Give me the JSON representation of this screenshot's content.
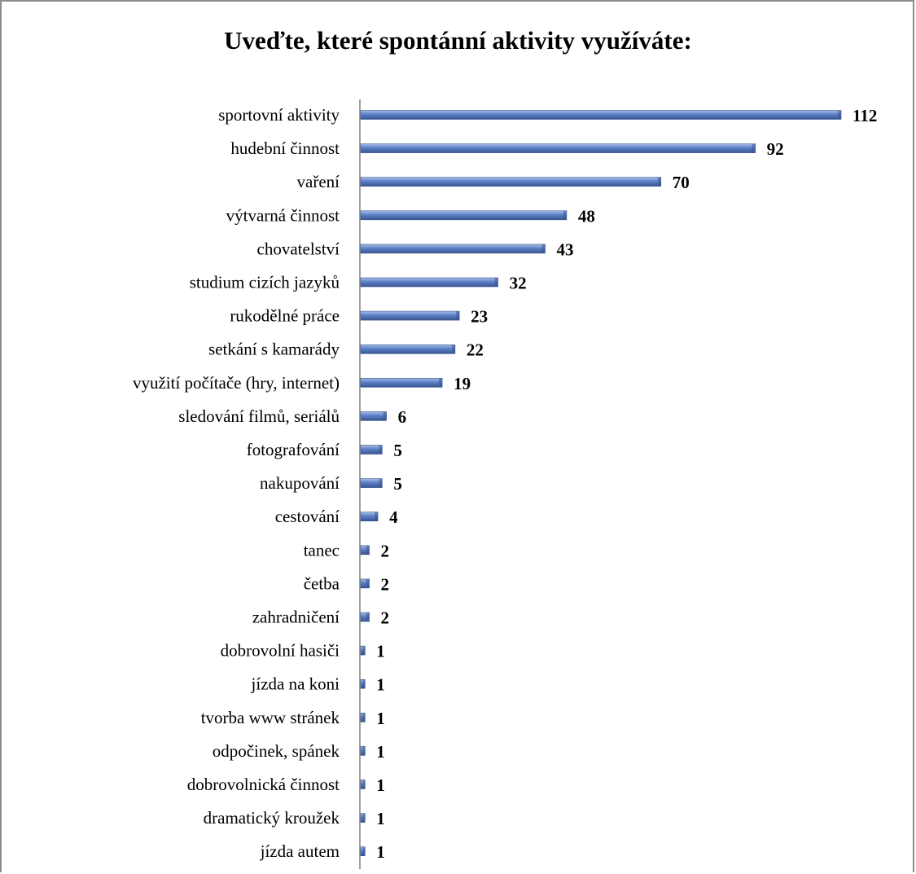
{
  "chart_data": {
    "type": "bar",
    "orientation": "horizontal",
    "title": "Uveďte, které spontánní aktivity využíváte:",
    "xlabel": "",
    "ylabel": "",
    "categories": [
      "sportovní aktivity",
      "hudební činnost",
      "vaření",
      "výtvarná činnost",
      "chovatelství",
      "studium cizích jazyků",
      "rukodělné práce",
      "setkání s kamarády",
      "využití počítače (hry, internet)",
      "sledování filmů, seriálů",
      "fotografování",
      "nakupování",
      "cestování",
      "tanec",
      "četba",
      "zahradničení",
      "dobrovolní hasiči",
      "jízda na koni",
      "tvorba www stránek",
      "odpočinek,  spánek",
      "dobrovolnická činnost",
      "dramatický kroužek",
      "jízda autem"
    ],
    "values": [
      112,
      92,
      70,
      48,
      43,
      32,
      23,
      22,
      19,
      6,
      5,
      5,
      4,
      2,
      2,
      2,
      1,
      1,
      1,
      1,
      1,
      1,
      1
    ],
    "xlim": [
      0,
      112
    ],
    "grid": false,
    "legend": "none",
    "data_labels": true,
    "bar_color": "#5b7fc7",
    "bar_top_color": "#a9bfe8",
    "bar_edge_color": "#3a5590",
    "axis_color": "#808080"
  }
}
